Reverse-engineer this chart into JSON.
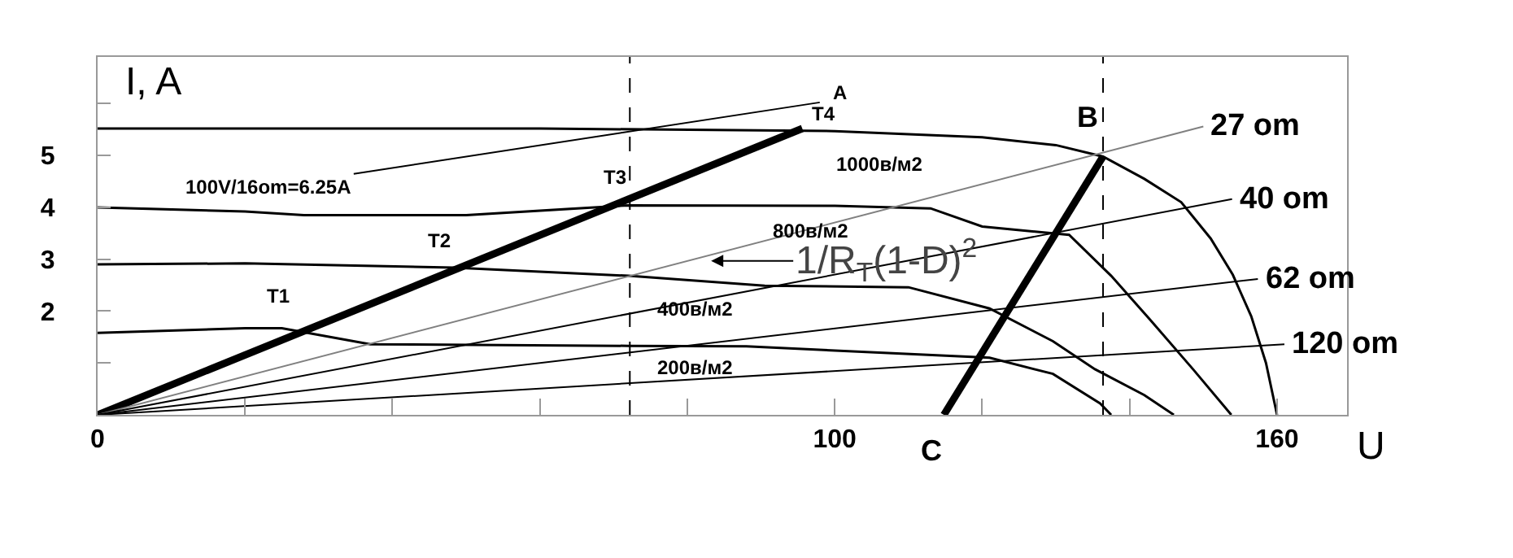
{
  "chart_data": {
    "type": "line",
    "xlabel": "U",
    "ylabel": "I, A",
    "xlim": [
      0,
      169.5
    ],
    "ylim": [
      0,
      6.9
    ],
    "xticks": [
      0,
      {
        "value": 20,
        "label": null
      },
      {
        "value": 40,
        "label": null
      },
      {
        "value": 60,
        "label": null
      },
      {
        "value": 80,
        "label": null
      },
      100,
      {
        "value": 120,
        "label": null
      },
      {
        "value": 140,
        "label": null
      },
      160
    ],
    "yticks": [
      {
        "value": 1,
        "label": null
      },
      2,
      3,
      4,
      5,
      {
        "value": 6,
        "label": null
      }
    ],
    "grid": false,
    "line_style": "solid",
    "series": [
      {
        "color": "#000000",
        "x": [
          0,
          60,
          100,
          120,
          130,
          136.4,
          142,
          147,
          151,
          154,
          156.5,
          158.5,
          160
        ],
        "values": [
          5.52,
          5.52,
          5.47,
          5.35,
          5.2,
          4.98,
          4.55,
          4.1,
          3.4,
          2.7,
          1.9,
          1.0,
          0
        ]
      },
      {
        "color": "#000000",
        "x": [
          0,
          20,
          28,
          50,
          72,
          100,
          113,
          120,
          131.8,
          137.5,
          142.8,
          148.6,
          153.8
        ],
        "values": [
          4.0,
          3.92,
          3.85,
          3.85,
          4.04,
          4.03,
          3.98,
          3.63,
          3.47,
          2.68,
          1.83,
          0.88,
          0
        ]
      },
      {
        "color": "#000000",
        "x": [
          0,
          20,
          48.3,
          72,
          90.5,
          110,
          121,
          129.6,
          135.3,
          142,
          146
        ],
        "values": [
          2.9,
          2.92,
          2.84,
          2.68,
          2.49,
          2.46,
          2.05,
          1.42,
          0.88,
          0.38,
          0
        ]
      },
      {
        "color": "#000000",
        "x": [
          0,
          20,
          25,
          37,
          72,
          88,
          121,
          129.6,
          136,
          137.5
        ],
        "values": [
          1.58,
          1.67,
          1.67,
          1.36,
          1.33,
          1.32,
          1.1,
          0.79,
          0.22,
          0
        ]
      },
      {
        "color": "#000000",
        "x": [
          0,
          95.6
        ],
        "values": [
          0,
          5.52
        ]
      },
      {
        "color": "#000000",
        "x": [
          114.8,
          136.4
        ],
        "values": [
          0,
          4.98
        ]
      },
      {
        "color": "#808080",
        "x": [
          0,
          150
        ],
        "values": [
          0,
          5.56
        ]
      },
      {
        "color": "#000000",
        "x": [
          0,
          153.9
        ],
        "values": [
          0,
          4.16
        ]
      },
      {
        "color": "#000000",
        "x": [
          0,
          157.4
        ],
        "values": [
          0,
          2.62
        ]
      },
      {
        "color": "#000000",
        "x": [
          0,
          161
        ],
        "values": [
          0,
          1.36
        ]
      }
    ],
    "ref_lines": [
      {
        "axis": "x",
        "value": 72.2,
        "line_style": "dashed",
        "color": "#000000"
      },
      {
        "axis": "x",
        "value": 136.4,
        "line_style": "dashed",
        "color": "#000000"
      }
    ],
    "annotations": [
      {
        "text": "T1",
        "x": 25,
        "y": 1.67
      },
      {
        "text": "T2",
        "x": 48.3,
        "y": 2.84
      },
      {
        "text": "T3",
        "x": 72.2,
        "y": 4.04
      },
      {
        "text": "T4",
        "x": 95.6,
        "y": 5.52
      },
      "A",
      {
        "text": "B",
        "x": 136.4,
        "y": 4.98
      },
      {
        "text": "C",
        "x": 114.8,
        "y": 0
      },
      "100V/16om=6.25A",
      {
        "text": "1000в/м2",
        "x": 106,
        "y": 5.45
      },
      {
        "text": "800в/м2",
        "x": 96.7,
        "y": 4.0
      },
      {
        "text": "400в/м2",
        "x": 81,
        "y": 2.55
      },
      {
        "text": "200в/м2",
        "x": 81,
        "y": 1.33
      },
      {
        "text": "27 om",
        "x": 150,
        "y": 5.56
      },
      {
        "text": "40 om",
        "x": 153.9,
        "y": 4.16
      },
      {
        "text": "62 om",
        "x": 157.4,
        "y": 2.62
      },
      {
        "text": "120 om",
        "x": 161,
        "y": 1.36
      },
      "1/R$_{T}$(1-D)$^{2}$"
    ]
  }
}
